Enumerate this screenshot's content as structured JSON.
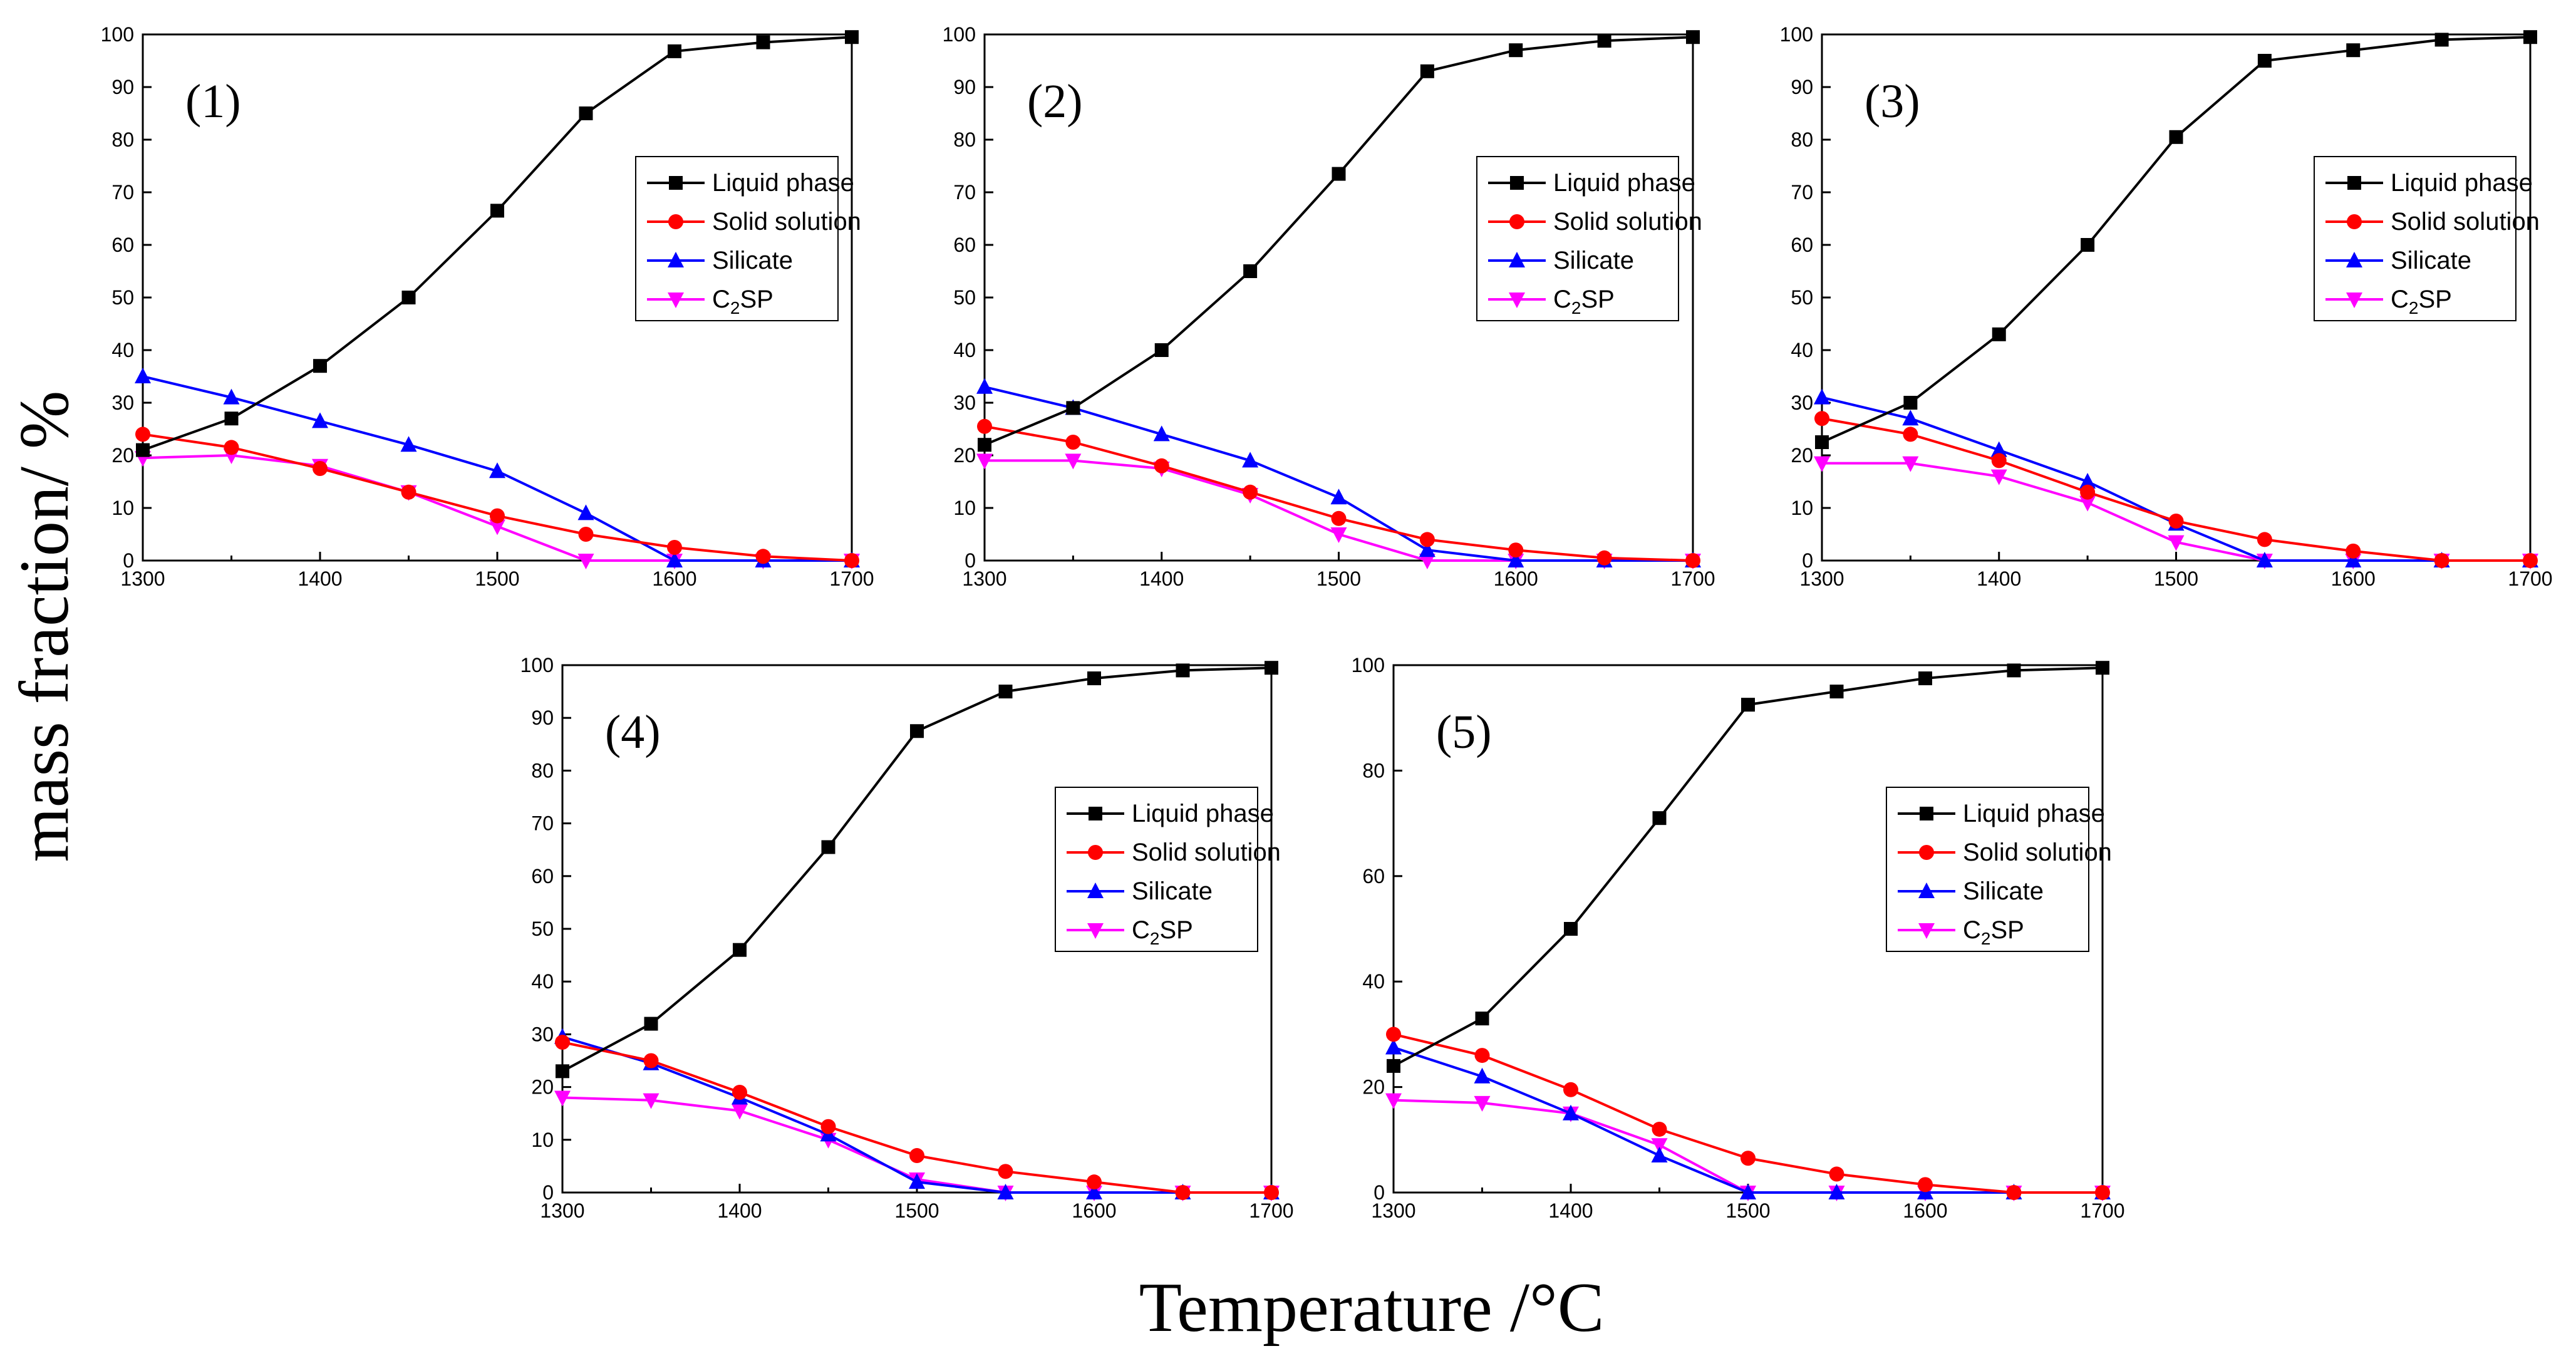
{
  "chart_data": {
    "type": "line",
    "xlabel": "Temperature /°C",
    "ylabel": "mass fraction/ %",
    "x": [
      1300,
      1350,
      1400,
      1450,
      1500,
      1550,
      1600,
      1650,
      1700
    ],
    "xticks": [
      "1300",
      "1400",
      "1500",
      "1600",
      "1700"
    ],
    "series_styles": [
      {
        "name": "Liquid phase",
        "color": "#000000",
        "marker": "square"
      },
      {
        "name": "Solid solution",
        "color": "#ff0000",
        "marker": "circle"
      },
      {
        "name": "Silicate",
        "color": "#0000ff",
        "marker": "triangle-up"
      },
      {
        "name": "C2SP",
        "color": "#ff00ff",
        "marker": "triangle-down"
      }
    ],
    "legend": {
      "liquid": "Liquid phase",
      "solid": "Solid solution",
      "silicate": "Silicate",
      "c2sp_prefix": "C",
      "c2sp_sub": "2",
      "c2sp_suffix": "SP"
    },
    "panels": [
      {
        "label": "(1)",
        "xlim": [
          1300,
          1700
        ],
        "ylim": [
          0,
          100
        ],
        "yticks": [
          "0",
          "10",
          "20",
          "30",
          "40",
          "50",
          "60",
          "70",
          "80",
          "90",
          "100"
        ],
        "series": [
          {
            "name": "Liquid phase",
            "values": [
              21,
              27,
              37,
              50,
              66.5,
              85,
              96.8,
              98.5,
              99.5
            ]
          },
          {
            "name": "Solid solution",
            "values": [
              24,
              21.5,
              17.5,
              13,
              8.5,
              5,
              2.5,
              0.8,
              0
            ]
          },
          {
            "name": "Silicate",
            "values": [
              35,
              31,
              26.5,
              22,
              17,
              9,
              0,
              0,
              0
            ]
          },
          {
            "name": "C2SP",
            "values": [
              19.5,
              20,
              18,
              13,
              6.5,
              0,
              0,
              0,
              0
            ]
          }
        ]
      },
      {
        "label": "(2)",
        "xlim": [
          1300,
          1700
        ],
        "ylim": [
          0,
          100
        ],
        "yticks": [
          "0",
          "10",
          "20",
          "30",
          "40",
          "50",
          "60",
          "70",
          "80",
          "90",
          "100"
        ],
        "series": [
          {
            "name": "Liquid phase",
            "values": [
              22,
              29,
              40,
              55,
              73.5,
              93,
              97,
              98.8,
              99.5
            ]
          },
          {
            "name": "Solid solution",
            "values": [
              25.5,
              22.5,
              18,
              13,
              8,
              4,
              2,
              0.5,
              0
            ]
          },
          {
            "name": "Silicate",
            "values": [
              33,
              29,
              24,
              19,
              12,
              2,
              0,
              0,
              0
            ]
          },
          {
            "name": "C2SP",
            "values": [
              19,
              19,
              17.5,
              12.5,
              5,
              0,
              0,
              0,
              0
            ]
          }
        ]
      },
      {
        "label": "(3)",
        "xlim": [
          1300,
          1700
        ],
        "ylim": [
          0,
          100
        ],
        "yticks": [
          "0",
          "10",
          "20",
          "30",
          "40",
          "50",
          "60",
          "70",
          "80",
          "90",
          "100"
        ],
        "series": [
          {
            "name": "Liquid phase",
            "values": [
              22.5,
              30,
              43,
              60,
              80.5,
              95,
              97,
              99,
              99.5
            ]
          },
          {
            "name": "Solid solution",
            "values": [
              27,
              24,
              19,
              13,
              7.5,
              4,
              1.8,
              0,
              0
            ]
          },
          {
            "name": "Silicate",
            "values": [
              31,
              27,
              21,
              15,
              7,
              0,
              0,
              0,
              0
            ]
          },
          {
            "name": "C2SP",
            "values": [
              18.5,
              18.5,
              16,
              11,
              3.5,
              0,
              0,
              0,
              0
            ]
          }
        ]
      },
      {
        "label": "(4)",
        "xlim": [
          1300,
          1700
        ],
        "ylim": [
          0,
          100
        ],
        "yticks": [
          "0",
          "10",
          "20",
          "30",
          "40",
          "50",
          "60",
          "70",
          "80",
          "90",
          "100"
        ],
        "series": [
          {
            "name": "Liquid phase",
            "values": [
              23,
              32,
              46,
              65.5,
              87.5,
              95,
              97.5,
              99,
              99.5
            ]
          },
          {
            "name": "Solid solution",
            "values": [
              28.5,
              25,
              19,
              12.5,
              7,
              4,
              2,
              0,
              0
            ]
          },
          {
            "name": "Silicate",
            "values": [
              29.5,
              24.5,
              18,
              11,
              2,
              0,
              0,
              0,
              0
            ]
          },
          {
            "name": "C2SP",
            "values": [
              18,
              17.5,
              15.5,
              10,
              2.5,
              0,
              0,
              0,
              0
            ]
          }
        ]
      },
      {
        "label": "(5)",
        "xlim": [
          1300,
          1700
        ],
        "ylim": [
          0,
          100
        ],
        "yticks": [
          "0",
          "20",
          "40",
          "60",
          "80",
          "100"
        ],
        "series": [
          {
            "name": "Liquid phase",
            "values": [
              24,
              33,
              50,
              71,
              92.5,
              95,
              97.5,
              99,
              99.5
            ]
          },
          {
            "name": "Solid solution",
            "values": [
              30,
              26,
              19.5,
              12,
              6.5,
              3.5,
              1.5,
              0,
              0
            ]
          },
          {
            "name": "Silicate",
            "values": [
              27.5,
              22,
              15,
              7,
              0,
              0,
              0,
              0,
              0
            ]
          },
          {
            "name": "C2SP",
            "values": [
              17.5,
              17,
              15,
              9,
              0,
              0,
              0,
              0,
              0
            ]
          }
        ]
      }
    ]
  }
}
